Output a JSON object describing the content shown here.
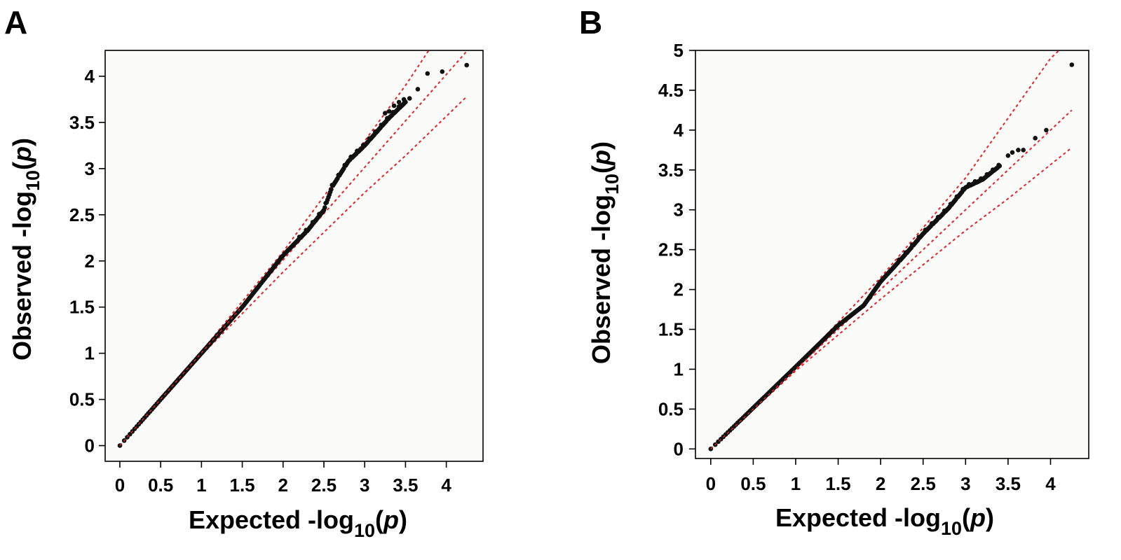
{
  "chart_data": [
    {
      "panel": "A",
      "type": "scatter",
      "xlabel": {
        "prefix": "Expected -log",
        "sub": "10",
        "open": "(",
        "var": "p",
        "close": ")"
      },
      "ylabel": {
        "prefix": "Observed -log",
        "sub": "10",
        "open": "(",
        "var": "p",
        "close": ")"
      },
      "xlim": [
        -0.18,
        4.45
      ],
      "ylim": [
        -0.17,
        4.28
      ],
      "xticks": [
        "0",
        "0.5",
        "1",
        "1.5",
        "2",
        "2.5",
        "3",
        "3.5",
        "4"
      ],
      "yticks": [
        "0",
        "0.5",
        "1",
        "1.5",
        "2",
        "2.5",
        "3",
        "3.5",
        "4"
      ],
      "grid": false,
      "colors": {
        "points": "#111111",
        "reference_lines": "#e0262b"
      },
      "reference_lines": {
        "upper_curve": [
          [
            0,
            0
          ],
          [
            1,
            1.02
          ],
          [
            2,
            2.1
          ],
          [
            3,
            3.3
          ],
          [
            3.5,
            3.9
          ],
          [
            3.8,
            4.3
          ]
        ],
        "expected": [
          [
            0,
            0
          ],
          [
            4.25,
            4.27
          ]
        ],
        "lower_curve": [
          [
            0,
            0
          ],
          [
            1,
            0.98
          ],
          [
            2,
            1.88
          ],
          [
            3,
            2.74
          ],
          [
            3.5,
            3.14
          ],
          [
            4.25,
            3.78
          ]
        ]
      },
      "observed_trend": [
        [
          0,
          0
        ],
        [
          1,
          1.0
        ],
        [
          1.5,
          1.5
        ],
        [
          2,
          2.06
        ],
        [
          2.3,
          2.33
        ],
        [
          2.5,
          2.55
        ],
        [
          2.6,
          2.8
        ],
        [
          2.8,
          3.08
        ],
        [
          3.0,
          3.25
        ],
        [
          3.3,
          3.55
        ],
        [
          3.5,
          3.72
        ]
      ],
      "tail_points": {
        "x": [
          3.25,
          3.3,
          3.36,
          3.42,
          3.48,
          3.55,
          3.65,
          3.77,
          3.95,
          4.25
        ],
        "y": [
          3.6,
          3.62,
          3.68,
          3.72,
          3.75,
          3.76,
          3.86,
          4.03,
          4.05,
          4.12
        ]
      }
    },
    {
      "panel": "B",
      "type": "scatter",
      "xlabel": {
        "prefix": "Expected -log",
        "sub": "10",
        "open": "(",
        "var": "p",
        "close": ")"
      },
      "ylabel": {
        "prefix": "Observed -log",
        "sub": "10",
        "open": "(",
        "var": "p",
        "close": ")"
      },
      "xlim": [
        -0.18,
        4.45
      ],
      "ylim": [
        -0.12,
        5.0
      ],
      "xticks": [
        "0",
        "0.5",
        "1",
        "1.5",
        "2",
        "2.5",
        "3",
        "3.5",
        "4"
      ],
      "yticks": [
        "0",
        "0.5",
        "1",
        "1.5",
        "2",
        "2.5",
        "3",
        "3.5",
        "4",
        "4.5",
        "5"
      ],
      "grid": false,
      "colors": {
        "points": "#111111",
        "reference_lines": "#e0262b"
      },
      "reference_lines": {
        "upper_curve": [
          [
            0,
            0
          ],
          [
            1,
            1.03
          ],
          [
            2,
            2.15
          ],
          [
            3,
            3.4
          ],
          [
            3.5,
            4.15
          ],
          [
            4.0,
            4.9
          ],
          [
            4.1,
            5.0
          ]
        ],
        "expected": [
          [
            0,
            0
          ],
          [
            4.25,
            4.25
          ]
        ],
        "lower_curve": [
          [
            0,
            0
          ],
          [
            1,
            0.98
          ],
          [
            2,
            1.88
          ],
          [
            3,
            2.74
          ],
          [
            3.5,
            3.14
          ],
          [
            4.25,
            3.78
          ]
        ]
      },
      "observed_trend": [
        [
          0,
          0
        ],
        [
          1,
          1.03
        ],
        [
          1.5,
          1.55
        ],
        [
          1.8,
          1.8
        ],
        [
          2,
          2.1
        ],
        [
          2.3,
          2.45
        ],
        [
          2.5,
          2.7
        ],
        [
          2.8,
          3.02
        ],
        [
          3.0,
          3.28
        ],
        [
          3.2,
          3.38
        ],
        [
          3.4,
          3.55
        ]
      ],
      "tail_points": {
        "x": [
          3.5,
          3.55,
          3.62,
          3.68,
          3.82,
          3.95,
          4.25
        ],
        "y": [
          3.68,
          3.72,
          3.75,
          3.75,
          3.9,
          4.0,
          4.82
        ]
      }
    }
  ]
}
